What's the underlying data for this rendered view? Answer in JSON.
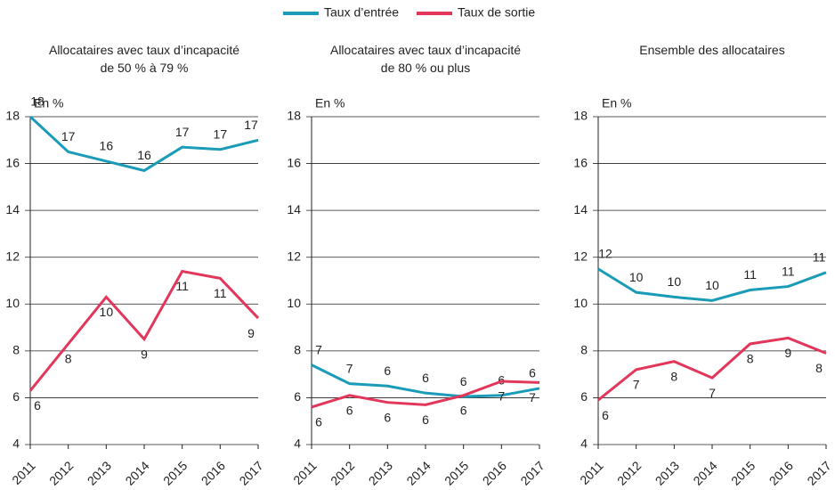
{
  "chart_data": [
    {
      "type": "line",
      "title": "Allocataires avec taux d’incapacité de 50 % à 79 %",
      "y_label": "En %",
      "categories": [
        "2011",
        "2012",
        "2013",
        "2014",
        "2015",
        "2016",
        "2017"
      ],
      "ylim": [
        4,
        18
      ],
      "yticks": [
        4,
        6,
        8,
        10,
        12,
        14,
        16,
        18
      ],
      "grid": true,
      "series": [
        {
          "name": "Taux d’entrée",
          "color": "#1a9bb8",
          "values": [
            18.0,
            16.5,
            16.1,
            15.7,
            16.7,
            16.6,
            17.0
          ],
          "value_labels": [
            "18",
            "17",
            "16",
            "16",
            "17",
            "17",
            "17"
          ]
        },
        {
          "name": "Taux de sortie",
          "color": "#e2365b",
          "values": [
            6.3,
            8.3,
            10.3,
            8.5,
            11.4,
            11.1,
            9.4
          ],
          "value_labels": [
            "6",
            "8",
            "10",
            "9",
            "11",
            "11",
            "9"
          ]
        }
      ]
    },
    {
      "type": "line",
      "title": "Allocataires avec taux d’incapacité de 80 % ou plus",
      "y_label": "En %",
      "categories": [
        "2011",
        "2012",
        "2013",
        "2014",
        "2015",
        "2016",
        "2017"
      ],
      "ylim": [
        4,
        18
      ],
      "yticks": [
        4,
        6,
        8,
        10,
        12,
        14,
        16,
        18
      ],
      "grid": true,
      "series": [
        {
          "name": "Taux d’entrée",
          "color": "#1a9bb8",
          "values": [
            7.4,
            6.6,
            6.5,
            6.2,
            6.05,
            6.1,
            6.4
          ],
          "value_labels": [
            "7",
            "7",
            "6",
            "6",
            "6",
            "6",
            "6"
          ]
        },
        {
          "name": "Taux de sortie",
          "color": "#e2365b",
          "values": [
            5.6,
            6.1,
            5.8,
            5.7,
            6.1,
            6.7,
            6.65
          ],
          "value_labels": [
            "6",
            "6",
            "6",
            "6",
            "6",
            "7",
            "7"
          ]
        }
      ]
    },
    {
      "type": "line",
      "title": "Ensemble des allocataires",
      "y_label": "En %",
      "categories": [
        "2011",
        "2012",
        "2013",
        "2014",
        "2015",
        "2016",
        "2017"
      ],
      "ylim": [
        4,
        18
      ],
      "yticks": [
        4,
        6,
        8,
        10,
        12,
        14,
        16,
        18
      ],
      "grid": true,
      "series": [
        {
          "name": "Taux d’entrée",
          "color": "#1a9bb8",
          "values": [
            11.5,
            10.5,
            10.3,
            10.15,
            10.6,
            10.75,
            11.35
          ],
          "value_labels": [
            "12",
            "10",
            "10",
            "10",
            "11",
            "11",
            "11"
          ]
        },
        {
          "name": "Taux de sortie",
          "color": "#e2365b",
          "values": [
            5.9,
            7.2,
            7.55,
            6.85,
            8.3,
            8.55,
            7.9
          ],
          "value_labels": [
            "6",
            "7",
            "8",
            "7",
            "8",
            "9",
            "8"
          ]
        }
      ]
    }
  ]
}
